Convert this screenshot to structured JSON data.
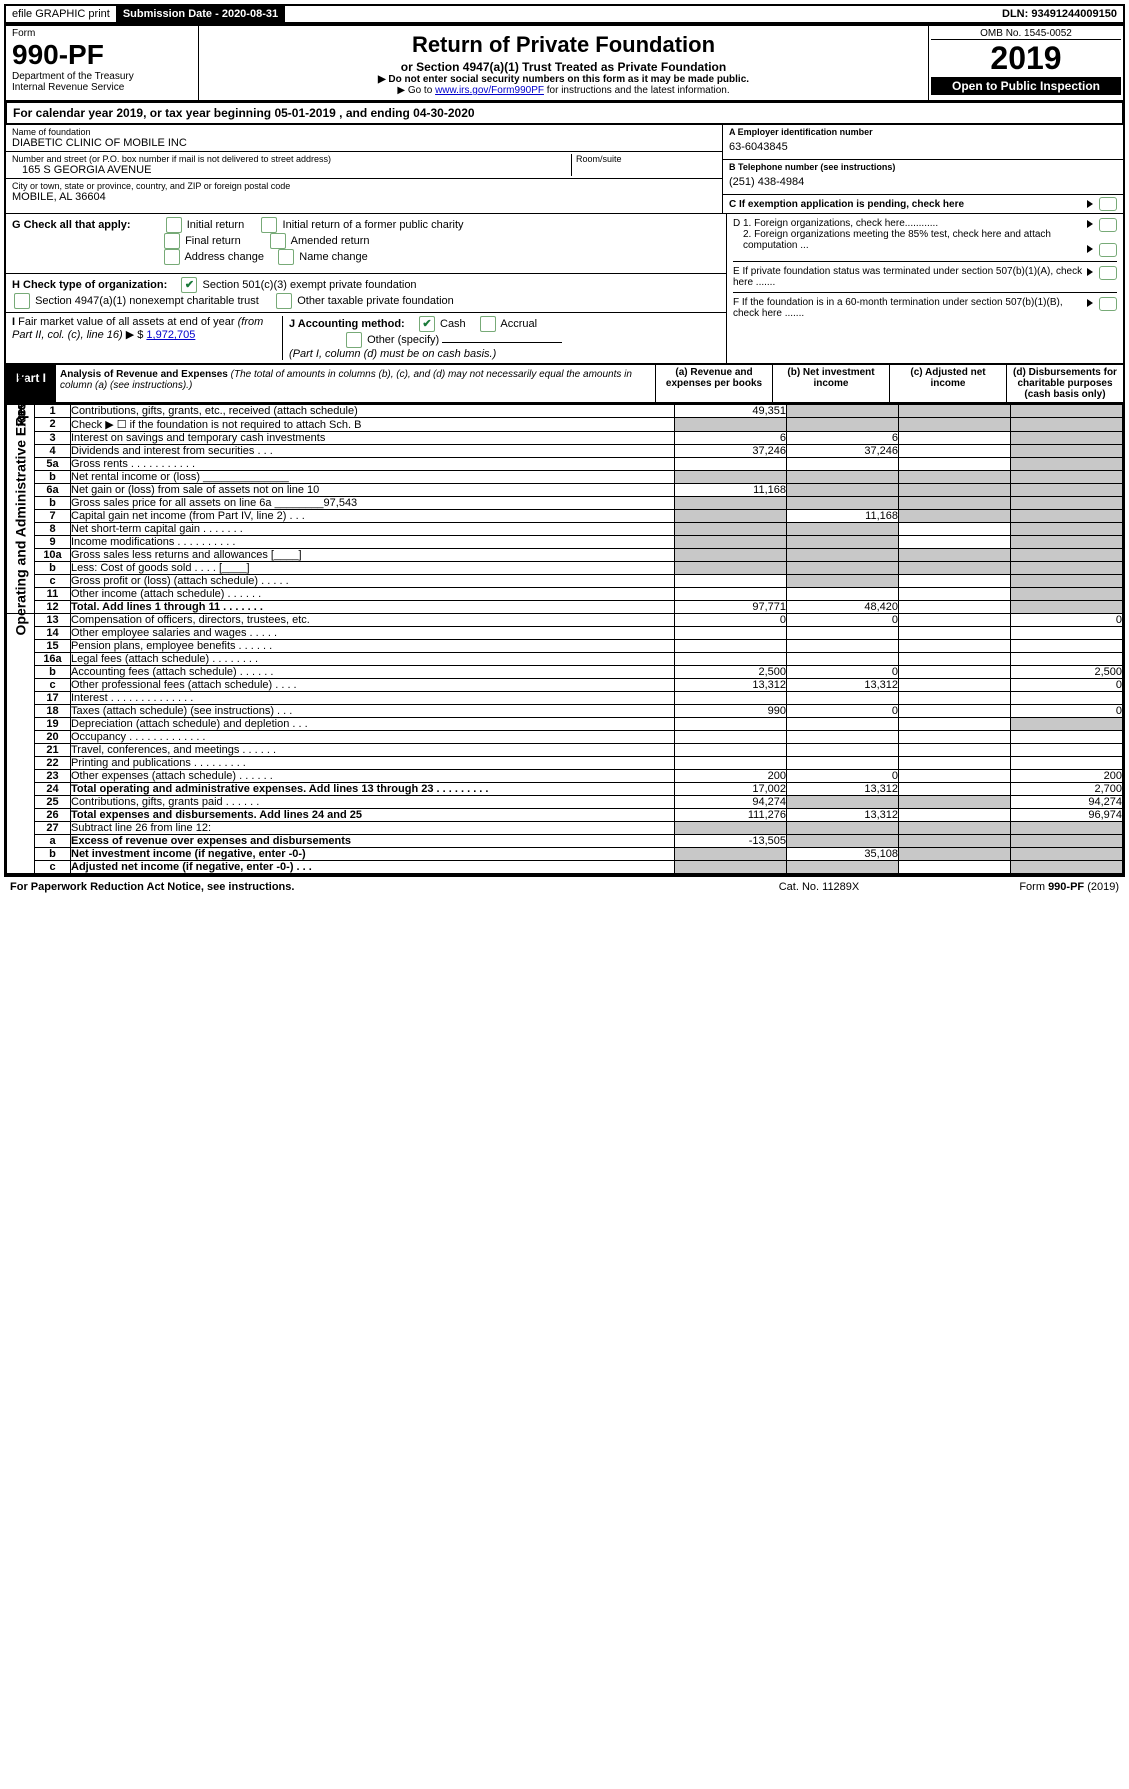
{
  "header": {
    "efile": "efile GRAPHIC print",
    "submission_label": "Submission Date - 2020-08-31",
    "dln": "DLN: 93491244009150"
  },
  "form_left": {
    "form_word": "Form",
    "number": "990-PF",
    "dept": "Department of the Treasury",
    "irs": "Internal Revenue Service"
  },
  "form_mid": {
    "title": "Return of Private Foundation",
    "sub": "or Section 4947(a)(1) Trust Treated as Private Foundation",
    "warn": "▶ Do not enter social security numbers on this form as it may be made public.",
    "goto_pre": "▶ Go to ",
    "goto_link": "www.irs.gov/Form990PF",
    "goto_post": " for instructions and the latest information."
  },
  "form_right": {
    "omb": "OMB No. 1545-0052",
    "year": "2019",
    "open": "Open to Public Inspection"
  },
  "cal": "For calendar year 2019, or tax year beginning 05-01-2019                           , and ending 04-30-2020",
  "name": {
    "label": "Name of foundation",
    "value": "DIABETIC CLINIC OF MOBILE INC",
    "addr_label": "Number and street (or P.O. box number if mail is not delivered to street address)",
    "addr_value": "165 S GEORGIA AVENUE",
    "room_label": "Room/suite",
    "city_label": "City or town, state or province, country, and ZIP or foreign postal code",
    "city_value": "MOBILE, AL  36604"
  },
  "id_block": {
    "a_label": "A Employer identification number",
    "a_value": "63-6043845",
    "b_label": "B Telephone number (see instructions)",
    "b_value": "(251) 438-4984",
    "c_label": "C If exemption application is pending, check here"
  },
  "g_block": {
    "label": "G Check all that apply:",
    "opts": [
      "Initial return",
      "Initial return of a former public charity",
      "Final return",
      "Amended return",
      "Address change",
      "Name change"
    ]
  },
  "h_block": {
    "label": "H Check type of organization:",
    "opt1": "Section 501(c)(3) exempt private foundation",
    "opt2": "Section 4947(a)(1) nonexempt charitable trust",
    "opt3": "Other taxable private foundation"
  },
  "i_block": {
    "label": "I Fair market value of all assets at end of year (from Part II, col. (c), line 16) ▶ $",
    "value": "1,972,705"
  },
  "j_block": {
    "label": "J Accounting method:",
    "cash": "Cash",
    "accrual": "Accrual",
    "other": "Other (specify)",
    "note": "(Part I, column (d) must be on cash basis.)"
  },
  "d_block": {
    "d1": "D 1. Foreign organizations, check here............",
    "d2": "2. Foreign organizations meeting the 85% test, check here and attach computation ...",
    "e": "E  If private foundation status was terminated under section 507(b)(1)(A), check here .......",
    "f": "F  If the foundation is in a 60-month termination under section 507(b)(1)(B), check here ......."
  },
  "part1": {
    "tab": "Part I",
    "title": "Analysis of Revenue and Expenses",
    "note": "(The total of amounts in columns (b), (c), and (d) may not necessarily equal the amounts in column (a) (see instructions).)",
    "cols": {
      "a": "(a)   Revenue and expenses per books",
      "b": "(b)  Net investment income",
      "c": "(c)  Adjusted net income",
      "d": "(d)  Disbursements for charitable purposes (cash basis only)"
    }
  },
  "side_labels": {
    "rev": "Revenue",
    "op": "Operating and Administrative Expenses"
  },
  "rows_rev": [
    {
      "n": "1",
      "d": "Contributions, gifts, grants, etc., received (attach schedule)",
      "a": "49,351",
      "b": "",
      "gray_b": true,
      "gray_c": true,
      "gray_d": true
    },
    {
      "n": "2",
      "d": "Check ▶ ☐ if the foundation is not required to attach Sch. B",
      "a": "",
      "b": "",
      "gray_a": true,
      "gray_b": true,
      "gray_c": true,
      "gray_d": true,
      "boldword": "not"
    },
    {
      "n": "3",
      "d": "Interest on savings and temporary cash investments",
      "a": "6",
      "b": "6",
      "gray_d": true
    },
    {
      "n": "4",
      "d": "Dividends and interest from securities   .  .  .",
      "a": "37,246",
      "b": "37,246",
      "gray_d": true
    },
    {
      "n": "5a",
      "d": "Gross rents      .  .  .  .  .  .  .  .  .  .  .",
      "a": "",
      "b": "",
      "gray_d": true
    },
    {
      "n": "b",
      "d": "Net rental income or (loss)  ______________",
      "gray_a": true,
      "gray_b": true,
      "gray_c": true,
      "gray_d": true
    },
    {
      "n": "6a",
      "d": "Net gain or (loss) from sale of assets not on line 10",
      "a": "11,168",
      "gray_b": true,
      "gray_c": true,
      "gray_d": true
    },
    {
      "n": "b",
      "d": "Gross sales price for all assets on line 6a ________97,543",
      "gray_a": true,
      "gray_b": true,
      "gray_c": true,
      "gray_d": true
    },
    {
      "n": "7",
      "d": "Capital gain net income (from Part IV, line 2)   .  .  .",
      "gray_a": true,
      "b": "11,168",
      "gray_c": true,
      "gray_d": true
    },
    {
      "n": "8",
      "d": "Net short-term capital gain   .  .  .  .  .  .  .",
      "gray_a": true,
      "gray_b": true,
      "gray_d": true
    },
    {
      "n": "9",
      "d": "Income modifications  .  .  .  .  .  .  .  .  .  .",
      "gray_a": true,
      "gray_b": true,
      "gray_d": true
    },
    {
      "n": "10a",
      "d": "Gross sales less returns and allowances  [____]",
      "gray_a": true,
      "gray_b": true,
      "gray_c": true,
      "gray_d": true
    },
    {
      "n": "b",
      "d": "Less: Cost of goods sold     .  .  .  .  [____]",
      "gray_a": true,
      "gray_b": true,
      "gray_c": true,
      "gray_d": true
    },
    {
      "n": "c",
      "d": "Gross profit or (loss) (attach schedule)   .  .  .  .  .",
      "gray_b": true,
      "gray_d": true
    },
    {
      "n": "11",
      "d": "Other income (attach schedule)    .  .  .  .  .  .",
      "gray_d": true
    },
    {
      "n": "12",
      "d": "Total. Add lines 1 through 11    .  .  .  .  .  .  .",
      "a": "97,771",
      "b": "48,420",
      "bold": true,
      "gray_d": true
    }
  ],
  "rows_op": [
    {
      "n": "13",
      "d": "Compensation of officers, directors, trustees, etc.",
      "a": "0",
      "b": "0",
      "d4": "0"
    },
    {
      "n": "14",
      "d": "Other employee salaries and wages    .  .  .  .  ."
    },
    {
      "n": "15",
      "d": "Pension plans, employee benefits   .  .  .  .  .  ."
    },
    {
      "n": "16a",
      "d": "Legal fees (attach schedule)  .  .  .  .  .  .  .  ."
    },
    {
      "n": "b",
      "d": "Accounting fees (attach schedule)   .  .  .  .  .  .",
      "a": "2,500",
      "b": "0",
      "d4": "2,500"
    },
    {
      "n": "c",
      "d": "Other professional fees (attach schedule)    .  .  .  .",
      "a": "13,312",
      "b": "13,312",
      "d4": "0"
    },
    {
      "n": "17",
      "d": "Interest   .  .  .  .  .  .  .  .  .  .  .  .  .  ."
    },
    {
      "n": "18",
      "d": "Taxes (attach schedule) (see instructions)    .  .  .",
      "a": "990",
      "b": "0",
      "d4": "0"
    },
    {
      "n": "19",
      "d": "Depreciation (attach schedule) and depletion    .  .  .",
      "gray_d": true
    },
    {
      "n": "20",
      "d": "Occupancy  .  .  .  .  .  .  .  .  .  .  .  .  ."
    },
    {
      "n": "21",
      "d": "Travel, conferences, and meetings   .  .  .  .  .  ."
    },
    {
      "n": "22",
      "d": "Printing and publications  .  .  .  .  .  .  .  .  ."
    },
    {
      "n": "23",
      "d": "Other expenses (attach schedule)   .  .  .  .  .  .",
      "a": "200",
      "b": "0",
      "d4": "200"
    },
    {
      "n": "24",
      "d": "Total operating and administrative expenses. Add lines 13 through 23   .  .  .  .  .  .  .  .  .",
      "a": "17,002",
      "b": "13,312",
      "d4": "2,700",
      "bold": true
    },
    {
      "n": "25",
      "d": "Contributions, gifts, grants paid     .  .  .  .  .  .",
      "a": "94,274",
      "gray_b": true,
      "gray_c": true,
      "d4": "94,274"
    },
    {
      "n": "26",
      "d": "Total expenses and disbursements. Add lines 24 and 25",
      "a": "111,276",
      "b": "13,312",
      "d4": "96,974",
      "bold": true
    },
    {
      "n": "27",
      "d": "Subtract line 26 from line 12:",
      "gray_a": true,
      "gray_b": true,
      "gray_c": true,
      "gray_d": true
    },
    {
      "n": "a",
      "d": "Excess of revenue over expenses and disbursements",
      "a": "-13,505",
      "gray_b": true,
      "gray_c": true,
      "gray_d": true,
      "bold": true
    },
    {
      "n": "b",
      "d": "Net investment income (if negative, enter -0-)",
      "gray_a": true,
      "b": "35,108",
      "gray_c": true,
      "gray_d": true,
      "bold": true
    },
    {
      "n": "c",
      "d": "Adjusted net income (if negative, enter -0-)   .  .  .",
      "gray_a": true,
      "gray_b": true,
      "gray_d": true,
      "bold": true
    }
  ],
  "footer": {
    "left": "For Paperwork Reduction Act Notice, see instructions.",
    "mid": "Cat. No. 11289X",
    "right": "Form 990-PF (2019)"
  },
  "colors": {
    "link": "#0000cc",
    "checkgreen": "#1a7a3a",
    "gray": "#c8c8c8",
    "black": "#000000",
    "white": "#ffffff"
  }
}
